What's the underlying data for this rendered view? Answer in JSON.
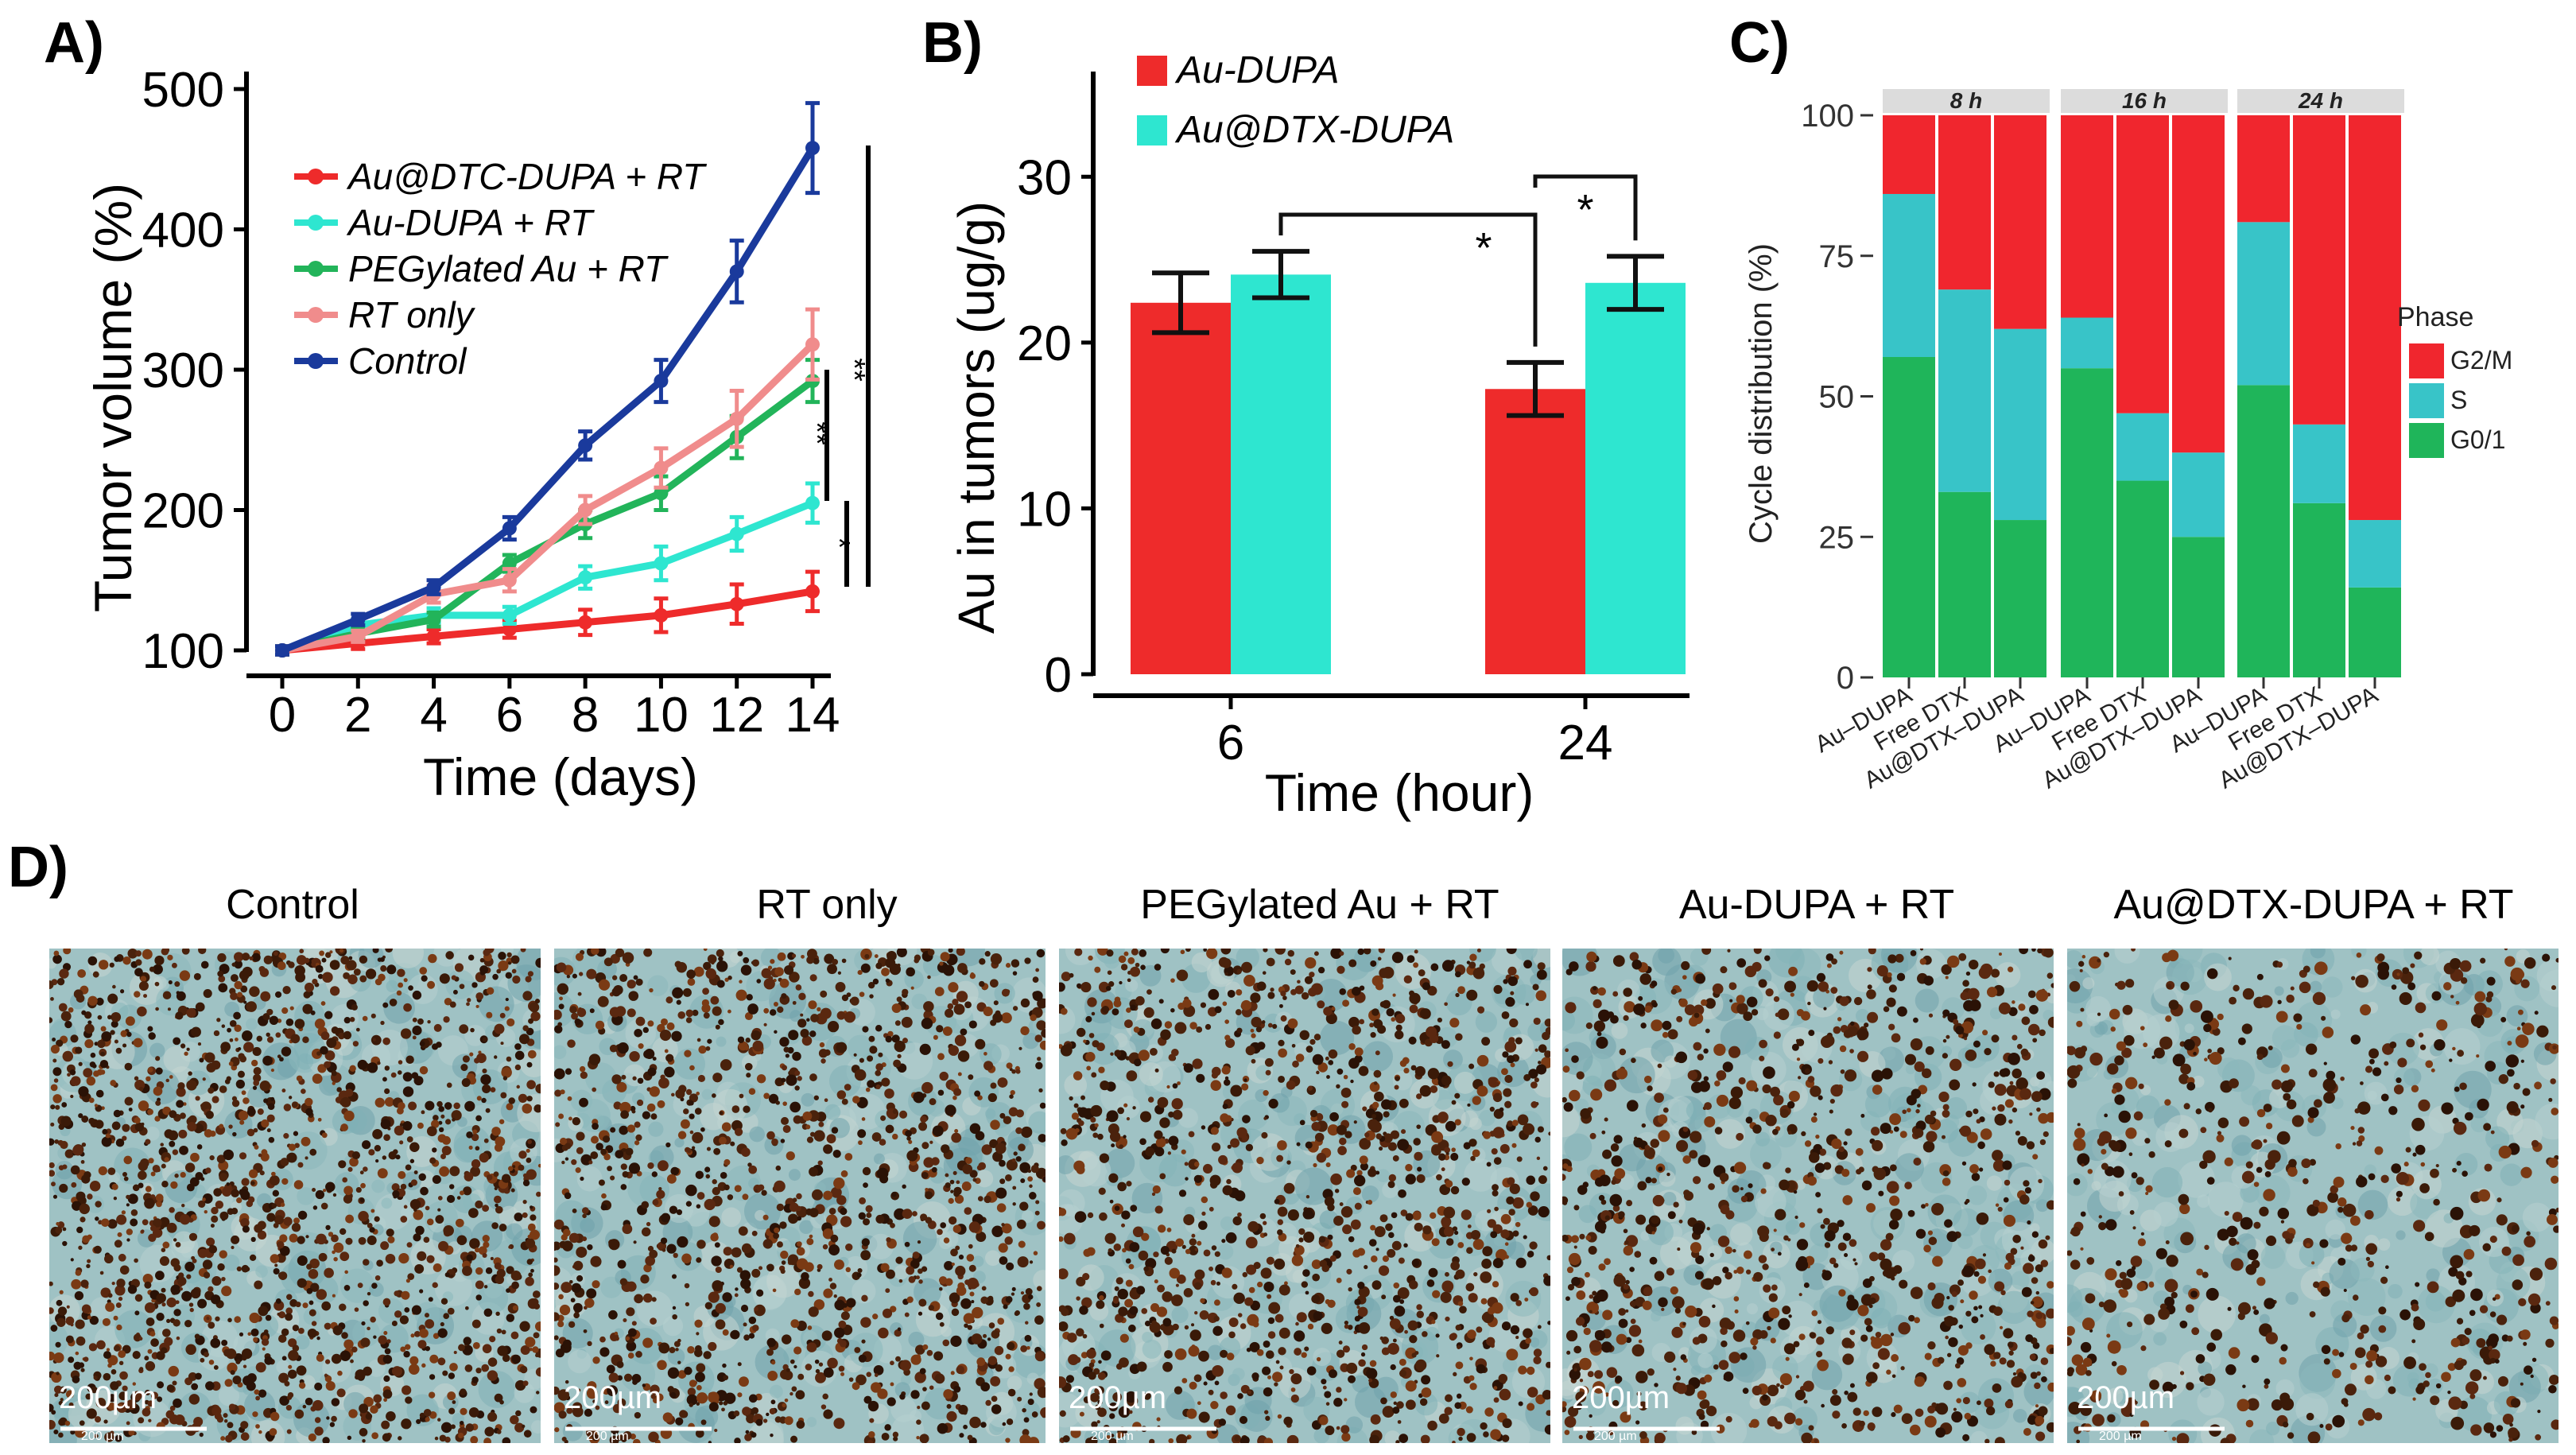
{
  "panel_labels": {
    "a": "A)",
    "b": "B)",
    "c": "C)",
    "d": "D)"
  },
  "colors": {
    "red": "#ee2b2b",
    "cyan": "#2ee6d0",
    "green": "#22b45a",
    "pink": "#f08c8c",
    "navy": "#1a3a9c",
    "c_red": "#f0262e",
    "c_cyan": "#38c4c8",
    "c_green": "#1fb55a"
  },
  "chart_data": [
    {
      "id": "A",
      "type": "line",
      "title": "",
      "xlabel": "Time (days)",
      "ylabel": "Tumor volume (%)",
      "xlim": [
        0,
        14
      ],
      "ylim": [
        100,
        500
      ],
      "xticks": [
        0,
        2,
        4,
        6,
        8,
        10,
        12,
        14
      ],
      "yticks": [
        100,
        200,
        300,
        400,
        500
      ],
      "x": [
        0,
        2,
        4,
        6,
        8,
        10,
        12,
        14
      ],
      "series": [
        {
          "name": "Au@DTC-DUPA + RT",
          "color": "#ee2b2b",
          "values": [
            100,
            105,
            110,
            115,
            120,
            125,
            133,
            142
          ],
          "err": [
            3,
            4,
            5,
            6,
            9,
            12,
            14,
            14
          ]
        },
        {
          "name": "Au-DUPA + RT",
          "color": "#2ee6d0",
          "values": [
            100,
            118,
            125,
            125,
            152,
            162,
            183,
            205
          ],
          "err": [
            3,
            4,
            5,
            6,
            8,
            12,
            12,
            14
          ]
        },
        {
          "name": "PEGylated Au + RT",
          "color": "#22b45a",
          "values": [
            100,
            112,
            122,
            162,
            190,
            212,
            252,
            292
          ],
          "err": [
            3,
            4,
            5,
            6,
            10,
            12,
            15,
            15
          ]
        },
        {
          "name": "RT only",
          "color": "#f08c8c",
          "values": [
            100,
            110,
            140,
            150,
            200,
            230,
            265,
            318
          ],
          "err": [
            3,
            4,
            6,
            8,
            10,
            14,
            20,
            25
          ]
        },
        {
          "name": "Control",
          "color": "#1a3a9c",
          "values": [
            100,
            122,
            145,
            187,
            246,
            292,
            370,
            458
          ],
          "err": [
            3,
            4,
            5,
            8,
            10,
            15,
            22,
            32
          ]
        }
      ],
      "significance": [
        "**",
        "**",
        "*"
      ]
    },
    {
      "id": "B",
      "type": "bar",
      "xlabel": "Time (hour)",
      "ylabel": "Au in tumors (ug/g)",
      "ylim": [
        0,
        35
      ],
      "yticks": [
        0,
        10,
        20,
        30
      ],
      "categories": [
        "6",
        "24"
      ],
      "series": [
        {
          "name": "Au-DUPA",
          "color": "#ee2b2b",
          "values": [
            22.4,
            17.2
          ],
          "err": [
            1.8,
            1.6
          ]
        },
        {
          "name": "Au@DTX-DUPA",
          "color": "#2ee6d0",
          "values": [
            24.1,
            23.6
          ],
          "err": [
            1.4,
            1.6
          ]
        }
      ],
      "significance": [
        "*",
        "*"
      ]
    },
    {
      "id": "C",
      "type": "bar",
      "stacked": true,
      "ylabel": "Cycle distribution (%)",
      "ylim": [
        0,
        100
      ],
      "yticks": [
        0,
        25,
        50,
        75,
        100
      ],
      "facets": [
        "8 h",
        "16 h",
        "24 h"
      ],
      "categories": [
        "Au–DUPA",
        "Free DTX",
        "Au@DTX–DUPA"
      ],
      "legend_title": "Phase",
      "phases": [
        {
          "name": "G2/M",
          "color": "#f0262e"
        },
        {
          "name": "S",
          "color": "#38c4c8"
        },
        {
          "name": "G0/1",
          "color": "#1fb55a"
        }
      ],
      "data": [
        [
          {
            "g01": 57,
            "s": 29,
            "g2m": 14
          },
          {
            "g01": 33,
            "s": 36,
            "g2m": 31
          },
          {
            "g01": 28,
            "s": 34,
            "g2m": 38
          }
        ],
        [
          {
            "g01": 55,
            "s": 9,
            "g2m": 36
          },
          {
            "g01": 35,
            "s": 12,
            "g2m": 53
          },
          {
            "g01": 25,
            "s": 15,
            "g2m": 60
          }
        ],
        [
          {
            "g01": 52,
            "s": 29,
            "g2m": 19
          },
          {
            "g01": 31,
            "s": 14,
            "g2m": 55
          },
          {
            "g01": 16,
            "s": 12,
            "g2m": 72
          }
        ]
      ]
    }
  ],
  "panel_d": {
    "titles": [
      "Control",
      "RT only",
      "PEGylated Au + RT",
      "Au-DUPA + RT",
      "Au@DTX-DUPA + RT"
    ],
    "scale_label": "200µm",
    "scale_small": "200 µm",
    "stain_density": [
      0.55,
      0.42,
      0.38,
      0.28,
      0.14
    ]
  }
}
